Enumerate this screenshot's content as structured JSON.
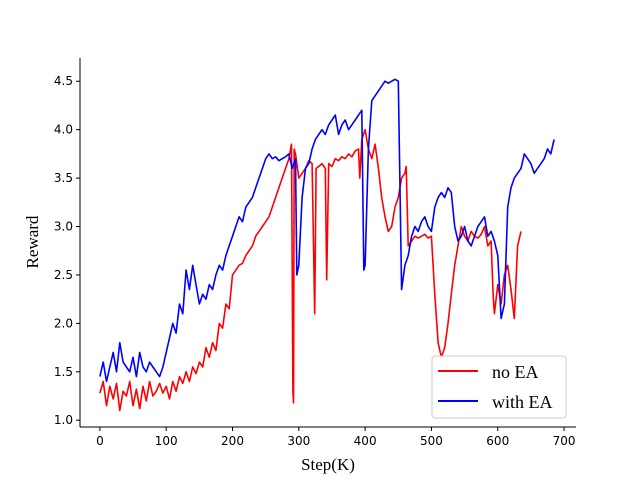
{
  "chart_data": {
    "type": "line",
    "title": "",
    "xlabel": "Step(K)",
    "ylabel": "Reward",
    "xlim": [
      -30,
      718
    ],
    "ylim": [
      0.93,
      4.74
    ],
    "xticks": [
      0,
      100,
      200,
      300,
      400,
      500,
      600,
      700
    ],
    "xtick_labels": [
      "0",
      "100",
      "200",
      "300",
      "400",
      "500",
      "600",
      "700"
    ],
    "yticks": [
      1.0,
      1.5,
      2.0,
      2.5,
      3.0,
      3.5,
      4.0,
      4.5
    ],
    "ytick_labels": [
      "1.0",
      "1.5",
      "2.0",
      "2.5",
      "3.0",
      "3.5",
      "4.0",
      "4.5"
    ],
    "grid": false,
    "legend_position": "bottom-right",
    "series": [
      {
        "name": "no EA",
        "color": "#ff0000",
        "x": [
          0,
          5,
          10,
          15,
          20,
          25,
          30,
          35,
          40,
          45,
          50,
          55,
          60,
          65,
          70,
          75,
          80,
          85,
          90,
          95,
          100,
          105,
          110,
          115,
          120,
          125,
          130,
          135,
          140,
          145,
          150,
          155,
          160,
          165,
          170,
          175,
          180,
          185,
          190,
          195,
          200,
          205,
          210,
          215,
          220,
          225,
          230,
          235,
          240,
          245,
          250,
          255,
          260,
          265,
          270,
          275,
          280,
          285,
          289,
          291,
          292,
          293,
          295,
          300,
          305,
          310,
          315,
          320,
          324,
          326,
          330,
          335,
          340,
          342,
          345,
          350,
          355,
          360,
          365,
          370,
          375,
          380,
          385,
          390,
          392,
          395,
          400,
          405,
          410,
          415,
          420,
          425,
          430,
          435,
          440,
          445,
          450,
          455,
          460,
          462,
          465,
          470,
          475,
          480,
          485,
          490,
          495,
          500,
          505,
          510,
          515,
          520,
          525,
          530,
          535,
          540,
          545,
          550,
          555,
          560,
          565,
          570,
          575,
          580,
          585,
          590,
          593,
          595,
          600,
          605,
          610,
          615,
          620,
          625,
          630,
          635
        ],
        "y": [
          1.28,
          1.4,
          1.15,
          1.35,
          1.22,
          1.38,
          1.1,
          1.3,
          1.25,
          1.4,
          1.15,
          1.32,
          1.12,
          1.35,
          1.2,
          1.4,
          1.25,
          1.3,
          1.38,
          1.28,
          1.35,
          1.22,
          1.4,
          1.3,
          1.45,
          1.38,
          1.5,
          1.4,
          1.55,
          1.48,
          1.6,
          1.55,
          1.75,
          1.65,
          1.8,
          1.72,
          2.0,
          1.95,
          2.2,
          2.15,
          2.5,
          2.55,
          2.6,
          2.62,
          2.7,
          2.75,
          2.8,
          2.9,
          2.95,
          3.0,
          3.05,
          3.1,
          3.2,
          3.3,
          3.4,
          3.5,
          3.6,
          3.7,
          3.85,
          1.3,
          1.18,
          3.8,
          3.75,
          3.5,
          3.55,
          3.6,
          3.68,
          3.65,
          2.1,
          3.6,
          3.62,
          3.65,
          3.6,
          2.45,
          3.65,
          3.62,
          3.7,
          3.68,
          3.72,
          3.7,
          3.75,
          3.72,
          3.78,
          3.8,
          3.5,
          3.9,
          4.0,
          3.8,
          3.7,
          3.85,
          3.6,
          3.3,
          3.1,
          2.95,
          3.0,
          3.2,
          3.3,
          3.5,
          3.55,
          3.62,
          2.8,
          2.85,
          2.9,
          2.88,
          2.9,
          2.92,
          2.88,
          2.9,
          2.3,
          1.8,
          1.65,
          1.75,
          2.0,
          2.3,
          2.6,
          2.8,
          3.0,
          2.9,
          2.85,
          2.95,
          2.9,
          2.88,
          2.92,
          3.0,
          2.8,
          2.85,
          2.3,
          2.1,
          2.4,
          2.2,
          2.5,
          2.6,
          2.35,
          2.05,
          2.8,
          2.95
        ]
      },
      {
        "name": "with EA",
        "color": "#0000ff",
        "x": [
          0,
          5,
          10,
          15,
          20,
          25,
          30,
          35,
          40,
          45,
          50,
          55,
          60,
          65,
          70,
          75,
          80,
          85,
          90,
          95,
          100,
          105,
          110,
          115,
          120,
          125,
          130,
          135,
          140,
          145,
          150,
          155,
          160,
          165,
          170,
          175,
          180,
          185,
          190,
          195,
          200,
          205,
          210,
          215,
          220,
          225,
          230,
          235,
          240,
          245,
          250,
          255,
          260,
          265,
          270,
          275,
          280,
          285,
          290,
          295,
          297,
          300,
          305,
          310,
          315,
          320,
          325,
          330,
          335,
          340,
          345,
          350,
          355,
          360,
          365,
          370,
          375,
          380,
          385,
          390,
          395,
          398,
          400,
          405,
          410,
          415,
          420,
          425,
          430,
          435,
          440,
          445,
          450,
          455,
          460,
          465,
          470,
          475,
          480,
          485,
          490,
          495,
          500,
          505,
          510,
          515,
          520,
          525,
          530,
          535,
          540,
          545,
          550,
          555,
          560,
          565,
          570,
          575,
          580,
          585,
          590,
          595,
          600,
          605,
          610,
          615,
          620,
          625,
          630,
          635,
          640,
          645,
          650,
          655,
          660,
          665,
          670,
          675,
          680,
          685
        ],
        "y": [
          1.45,
          1.6,
          1.4,
          1.55,
          1.7,
          1.5,
          1.8,
          1.6,
          1.55,
          1.5,
          1.65,
          1.45,
          1.7,
          1.55,
          1.5,
          1.6,
          1.55,
          1.5,
          1.45,
          1.55,
          1.7,
          1.85,
          2.0,
          1.9,
          2.2,
          2.1,
          2.55,
          2.35,
          2.6,
          2.4,
          2.2,
          2.3,
          2.25,
          2.4,
          2.35,
          2.5,
          2.6,
          2.55,
          2.7,
          2.8,
          2.9,
          3.0,
          3.1,
          3.05,
          3.2,
          3.25,
          3.3,
          3.4,
          3.5,
          3.6,
          3.7,
          3.75,
          3.7,
          3.72,
          3.68,
          3.7,
          3.72,
          3.75,
          3.6,
          3.7,
          2.5,
          2.6,
          3.3,
          3.6,
          3.65,
          3.8,
          3.9,
          3.95,
          4.0,
          3.95,
          4.05,
          4.1,
          4.15,
          3.95,
          4.05,
          4.1,
          4.0,
          4.05,
          4.1,
          4.15,
          4.2,
          2.55,
          2.6,
          3.8,
          4.3,
          4.35,
          4.4,
          4.45,
          4.5,
          4.48,
          4.5,
          4.52,
          4.5,
          2.35,
          2.6,
          2.7,
          2.9,
          3.0,
          2.95,
          3.05,
          3.1,
          3.0,
          2.95,
          3.2,
          3.3,
          3.35,
          3.3,
          3.4,
          3.35,
          3.0,
          2.85,
          2.9,
          3.0,
          2.85,
          2.8,
          2.9,
          3.0,
          3.05,
          3.1,
          2.9,
          2.95,
          2.85,
          2.7,
          2.05,
          2.2,
          3.2,
          3.4,
          3.5,
          3.55,
          3.6,
          3.75,
          3.7,
          3.65,
          3.55,
          3.6,
          3.65,
          3.7,
          3.8,
          3.75,
          3.9
        ]
      }
    ]
  }
}
